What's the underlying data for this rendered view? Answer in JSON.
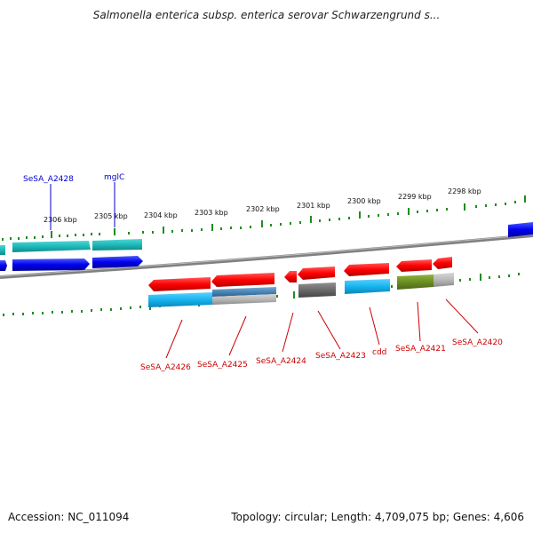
{
  "header": {
    "title": "Salmonella enterica subsp. enterica serovar Schwarzengrund s..."
  },
  "footer": {
    "accession": "Accession: NC_011094",
    "summary": "Topology: circular; Length: 4,709,075 bp; Genes: 4,606"
  },
  "colors": {
    "tick": "#228b22",
    "backbone": "#808080",
    "upper_label": "#0000cc",
    "lower_label": "#cc0000",
    "red_gene": "#ff0000",
    "blue_gene": "#0000ee",
    "cyan_gene": "#1fb8b8",
    "sky_gene": "#16b4ee",
    "steel_gene": "#4a86b8",
    "gray_gene": "#6a6a6a",
    "light_gray_gene": "#b8b8b8",
    "olive_gene": "#6b8e23"
  },
  "scale": {
    "unit": "kbp",
    "ticks": [
      {
        "label": "2306 kbp"
      },
      {
        "label": "2305 kbp"
      },
      {
        "label": "2304 kbp"
      },
      {
        "label": "2303 kbp"
      },
      {
        "label": "2302 kbp"
      },
      {
        "label": "2301 kbp"
      },
      {
        "label": "2300 kbp"
      },
      {
        "label": "2299 kbp"
      },
      {
        "label": "2298 kbp"
      }
    ]
  },
  "genes_upper": [
    {
      "label": "SeSA_A2428"
    },
    {
      "label": "mglC"
    }
  ],
  "genes_lower": [
    {
      "label": "SeSA_A2426"
    },
    {
      "label": "SeSA_A2425"
    },
    {
      "label": "SeSA_A2424"
    },
    {
      "label": "SeSA_A2423"
    },
    {
      "label": "cdd"
    },
    {
      "label": "SeSA_A2421"
    },
    {
      "label": "SeSA_A2420"
    }
  ]
}
